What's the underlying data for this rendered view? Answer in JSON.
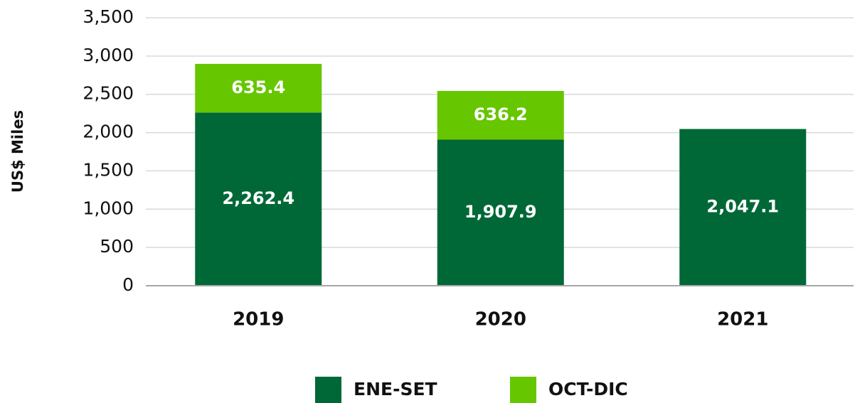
{
  "chart_data": {
    "type": "stacked_bar",
    "y_label": "US$ Miles",
    "categories": [
      "2019",
      "2020",
      "2021"
    ],
    "series": [
      {
        "name": "ENE-SET",
        "color": "#006837",
        "values": [
          2262.4,
          1907.9,
          2047.1
        ],
        "value_labels": [
          "2,262.4",
          "1,907.9",
          "2,047.1"
        ]
      },
      {
        "name": "OCT-DIC",
        "color": "#66c600",
        "values": [
          635.4,
          636.2,
          null
        ],
        "value_labels": [
          "635.4",
          "636.2",
          null
        ]
      }
    ],
    "ylim": [
      0,
      3500
    ],
    "yticks": [
      0,
      500,
      {
        "value": 1000,
        "label": "1,000"
      },
      {
        "value": 1500,
        "label": "1,500"
      },
      {
        "value": 2000,
        "label": "2,000"
      },
      {
        "value": 2500,
        "label": "2,500"
      },
      {
        "value": 3000,
        "label": "3,000"
      },
      {
        "value": 3500,
        "label": "3,500"
      }
    ],
    "grid": true,
    "legend": "bottom"
  }
}
